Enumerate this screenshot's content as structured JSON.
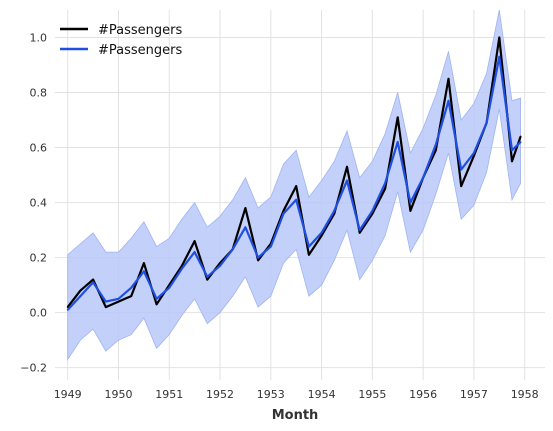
{
  "chart_data": {
    "type": "line",
    "title": "",
    "xlabel": "Month",
    "ylabel": "",
    "xlim": [
      1948.75,
      1958.4
    ],
    "ylim": [
      -0.245,
      1.1
    ],
    "grid": true,
    "legend_position": "top-left",
    "x_ticks": [
      {
        "value": 1949,
        "label": "1949"
      },
      {
        "value": 1950,
        "label": "1950"
      },
      {
        "value": 1951,
        "label": "1951"
      },
      {
        "value": 1952,
        "label": "1952"
      },
      {
        "value": 1953,
        "label": "1953"
      },
      {
        "value": 1954,
        "label": "1954"
      },
      {
        "value": 1955,
        "label": "1955"
      },
      {
        "value": 1956,
        "label": "1956"
      },
      {
        "value": 1957,
        "label": "1957"
      },
      {
        "value": 1958,
        "label": "1958"
      }
    ],
    "y_ticks": [
      {
        "value": -0.2,
        "label": "−0.2"
      },
      {
        "value": 0.0,
        "label": "0.0"
      },
      {
        "value": 0.2,
        "label": "0.2"
      },
      {
        "value": 0.4,
        "label": "0.4"
      },
      {
        "value": 0.6,
        "label": "0.6"
      },
      {
        "value": 0.8,
        "label": "0.8"
      },
      {
        "value": 1.0,
        "label": "1.0"
      }
    ],
    "series": [
      {
        "name": "#Passengers",
        "color": "#000000",
        "x": [
          1949.0,
          1949.25,
          1949.5,
          1949.75,
          1950.0,
          1950.25,
          1950.5,
          1950.75,
          1951.0,
          1951.25,
          1951.5,
          1951.75,
          1952.0,
          1952.25,
          1952.5,
          1952.75,
          1953.0,
          1953.25,
          1953.5,
          1953.75,
          1954.0,
          1954.25,
          1954.5,
          1954.75,
          1955.0,
          1955.25,
          1955.5,
          1955.75,
          1956.0,
          1956.25,
          1956.5,
          1956.75,
          1957.0,
          1957.25,
          1957.5,
          1957.75,
          1957.92
        ],
        "values": [
          0.02,
          0.08,
          0.12,
          0.02,
          0.04,
          0.06,
          0.18,
          0.03,
          0.1,
          0.17,
          0.26,
          0.12,
          0.18,
          0.23,
          0.38,
          0.19,
          0.25,
          0.37,
          0.46,
          0.21,
          0.28,
          0.36,
          0.53,
          0.29,
          0.36,
          0.45,
          0.71,
          0.37,
          0.49,
          0.59,
          0.85,
          0.46,
          0.57,
          0.69,
          1.0,
          0.55,
          0.64
        ]
      },
      {
        "name": "#Passengers",
        "color": "#1f4fe0",
        "band_color": "#b8c8f8",
        "x": [
          1949.0,
          1949.25,
          1949.5,
          1949.75,
          1950.0,
          1950.25,
          1950.5,
          1950.75,
          1951.0,
          1951.25,
          1951.5,
          1951.75,
          1952.0,
          1952.25,
          1952.5,
          1952.75,
          1953.0,
          1953.25,
          1953.5,
          1953.75,
          1954.0,
          1954.25,
          1954.5,
          1954.75,
          1955.0,
          1955.25,
          1955.5,
          1955.75,
          1956.0,
          1956.25,
          1956.5,
          1956.75,
          1957.0,
          1957.25,
          1957.5,
          1957.75,
          1957.92
        ],
        "values": [
          0.01,
          0.06,
          0.11,
          0.04,
          0.05,
          0.09,
          0.15,
          0.05,
          0.09,
          0.16,
          0.22,
          0.13,
          0.17,
          0.23,
          0.31,
          0.2,
          0.24,
          0.36,
          0.41,
          0.24,
          0.29,
          0.37,
          0.48,
          0.3,
          0.37,
          0.47,
          0.62,
          0.4,
          0.49,
          0.61,
          0.77,
          0.52,
          0.58,
          0.69,
          0.93,
          0.59,
          0.62
        ],
        "lower": [
          -0.17,
          -0.1,
          -0.06,
          -0.14,
          -0.1,
          -0.08,
          -0.02,
          -0.13,
          -0.08,
          -0.01,
          0.05,
          -0.04,
          0.0,
          0.06,
          0.13,
          0.02,
          0.06,
          0.18,
          0.23,
          0.06,
          0.1,
          0.19,
          0.3,
          0.12,
          0.19,
          0.28,
          0.44,
          0.22,
          0.3,
          0.43,
          0.58,
          0.34,
          0.39,
          0.51,
          0.74,
          0.41,
          0.47
        ],
        "upper": [
          0.21,
          0.25,
          0.29,
          0.22,
          0.22,
          0.27,
          0.33,
          0.24,
          0.27,
          0.34,
          0.4,
          0.31,
          0.35,
          0.41,
          0.49,
          0.38,
          0.42,
          0.54,
          0.59,
          0.42,
          0.48,
          0.55,
          0.66,
          0.49,
          0.55,
          0.65,
          0.8,
          0.58,
          0.67,
          0.79,
          0.95,
          0.7,
          0.76,
          0.87,
          1.1,
          0.77,
          0.78
        ]
      }
    ]
  }
}
